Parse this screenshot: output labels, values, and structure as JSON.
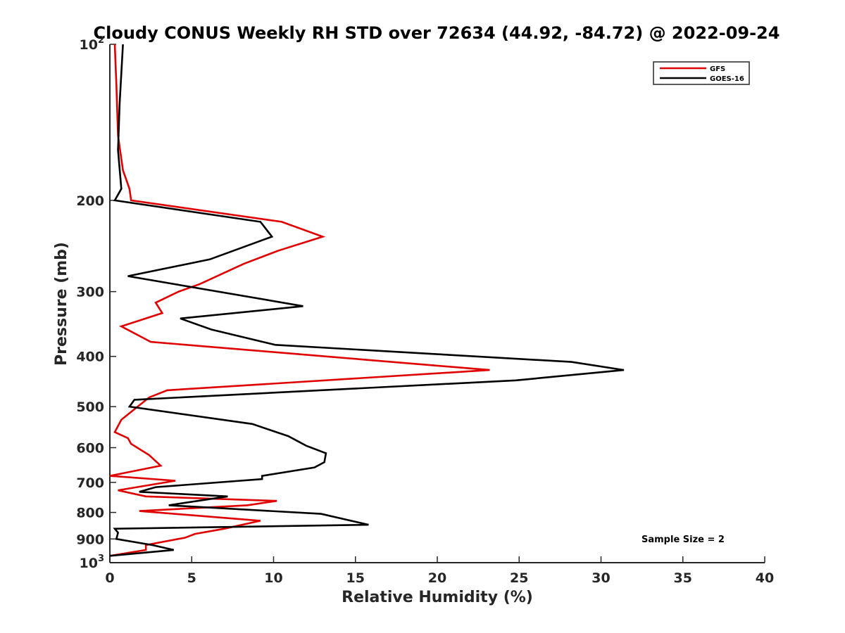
{
  "chart_data": {
    "type": "line",
    "title": "Cloudy CONUS Weekly RH STD over 72634 (44.92, -84.72) @ 2022-09-24",
    "xlabel": "Relative Humidity (%)",
    "ylabel": "Pressure (mb)",
    "xlim": [
      0,
      40
    ],
    "ylim": [
      100,
      1000
    ],
    "y_scale": "log",
    "y_reversed": true,
    "grid": false,
    "legend_position": "top-right",
    "x_ticks": [
      0,
      5,
      10,
      15,
      20,
      25,
      30,
      35,
      40
    ],
    "y_ticks": [
      {
        "value": 100,
        "base": "10",
        "exp": "2"
      },
      {
        "value": 200,
        "label": "200"
      },
      {
        "value": 300,
        "label": "300"
      },
      {
        "value": 400,
        "label": "400"
      },
      {
        "value": 500,
        "label": "500"
      },
      {
        "value": 600,
        "label": "600"
      },
      {
        "value": 700,
        "label": "700"
      },
      {
        "value": 800,
        "label": "800"
      },
      {
        "value": 900,
        "label": "900"
      },
      {
        "value": 1000,
        "base": "10",
        "exp": "3"
      }
    ],
    "annotation": "Sample Size = 2",
    "series": [
      {
        "name": "GFS",
        "color": "#e00000",
        "points": [
          [
            0.3,
            100
          ],
          [
            0.4,
            120
          ],
          [
            0.5,
            150
          ],
          [
            0.8,
            175
          ],
          [
            1.2,
            190
          ],
          [
            1.3,
            200
          ],
          [
            10.5,
            220
          ],
          [
            13.0,
            235
          ],
          [
            10.3,
            250
          ],
          [
            8.2,
            265
          ],
          [
            5.5,
            290
          ],
          [
            4.2,
            300
          ],
          [
            2.8,
            315
          ],
          [
            3.2,
            330
          ],
          [
            0.7,
            350
          ],
          [
            2.5,
            375
          ],
          [
            23.2,
            425
          ],
          [
            3.5,
            465
          ],
          [
            2.4,
            480
          ],
          [
            1.7,
            500
          ],
          [
            0.7,
            530
          ],
          [
            0.3,
            560
          ],
          [
            1.1,
            575
          ],
          [
            1.3,
            590
          ],
          [
            2.4,
            620
          ],
          [
            3.1,
            650
          ],
          [
            0.0,
            680
          ],
          [
            4.0,
            695
          ],
          [
            0.5,
            725
          ],
          [
            2.2,
            745
          ],
          [
            10.2,
            760
          ],
          [
            8.4,
            775
          ],
          [
            1.8,
            795
          ],
          [
            9.2,
            830
          ],
          [
            7.0,
            860
          ],
          [
            5.2,
            880
          ],
          [
            4.6,
            895
          ],
          [
            2.2,
            925
          ],
          [
            2.2,
            945
          ],
          [
            0.0,
            970
          ]
        ]
      },
      {
        "name": "GOES-16",
        "color": "#000000",
        "points": [
          [
            0.8,
            100
          ],
          [
            0.6,
            130
          ],
          [
            0.5,
            160
          ],
          [
            0.7,
            190
          ],
          [
            0.3,
            200
          ],
          [
            9.2,
            220
          ],
          [
            9.9,
            235
          ],
          [
            6.1,
            260
          ],
          [
            1.1,
            280
          ],
          [
            11.8,
            320
          ],
          [
            4.3,
            338
          ],
          [
            6.2,
            355
          ],
          [
            10.1,
            380
          ],
          [
            28.2,
            410
          ],
          [
            31.4,
            425
          ],
          [
            24.8,
            445
          ],
          [
            1.5,
            485
          ],
          [
            1.2,
            500
          ],
          [
            8.7,
            540
          ],
          [
            10.9,
            570
          ],
          [
            12.0,
            595
          ],
          [
            13.2,
            615
          ],
          [
            13.1,
            640
          ],
          [
            12.5,
            655
          ],
          [
            9.3,
            680
          ],
          [
            9.3,
            690
          ],
          [
            2.8,
            715
          ],
          [
            1.8,
            730
          ],
          [
            7.2,
            745
          ],
          [
            3.6,
            775
          ],
          [
            12.9,
            805
          ],
          [
            15.8,
            845
          ],
          [
            0.3,
            860
          ],
          [
            0.5,
            875
          ],
          [
            0.4,
            900
          ],
          [
            2.6,
            925
          ],
          [
            3.9,
            945
          ],
          [
            0.0,
            970
          ]
        ]
      }
    ]
  }
}
